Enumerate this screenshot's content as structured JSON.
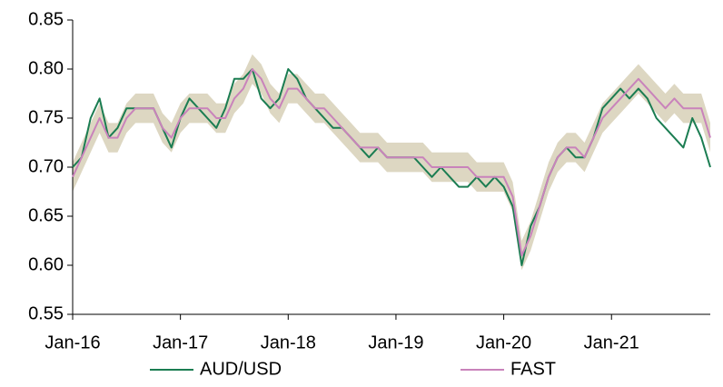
{
  "chart_data": {
    "type": "line",
    "categories": [
      "Jan-16",
      null,
      null,
      null,
      null,
      null,
      null,
      null,
      null,
      null,
      null,
      null,
      "Jan-17",
      null,
      null,
      null,
      null,
      null,
      null,
      null,
      null,
      null,
      null,
      null,
      "Jan-18",
      null,
      null,
      null,
      null,
      null,
      null,
      null,
      null,
      null,
      null,
      null,
      "Jan-19",
      null,
      null,
      null,
      null,
      null,
      null,
      null,
      null,
      null,
      null,
      null,
      "Jan-20",
      null,
      null,
      null,
      null,
      null,
      null,
      null,
      null,
      null,
      null,
      null,
      "Jan-21",
      null,
      null,
      null,
      null,
      null,
      null,
      null,
      null,
      null,
      null,
      null
    ],
    "series": [
      {
        "name": "AUD/USD",
        "color": "#1b7d52",
        "values": [
          0.7,
          0.71,
          0.75,
          0.77,
          0.73,
          0.74,
          0.76,
          0.76,
          0.76,
          0.76,
          0.74,
          0.72,
          0.75,
          0.77,
          0.76,
          0.75,
          0.74,
          0.76,
          0.79,
          0.79,
          0.8,
          0.77,
          0.76,
          0.77,
          0.8,
          0.79,
          0.77,
          0.76,
          0.75,
          0.74,
          0.74,
          0.73,
          0.72,
          0.71,
          0.72,
          0.71,
          0.71,
          0.71,
          0.71,
          0.7,
          0.69,
          0.7,
          0.69,
          0.68,
          0.68,
          0.69,
          0.68,
          0.69,
          0.68,
          0.66,
          0.6,
          0.64,
          0.66,
          0.69,
          0.71,
          0.72,
          0.71,
          0.71,
          0.73,
          0.76,
          0.77,
          0.78,
          0.77,
          0.78,
          0.77,
          0.75,
          0.74,
          0.73,
          0.72,
          0.75,
          0.73,
          0.7
        ]
      },
      {
        "name": "FAST",
        "color": "#c983bb",
        "values": [
          0.69,
          0.71,
          0.73,
          0.75,
          0.73,
          0.73,
          0.75,
          0.76,
          0.76,
          0.76,
          0.74,
          0.73,
          0.75,
          0.76,
          0.76,
          0.76,
          0.75,
          0.75,
          0.77,
          0.78,
          0.8,
          0.79,
          0.77,
          0.76,
          0.78,
          0.78,
          0.77,
          0.76,
          0.76,
          0.75,
          0.74,
          0.73,
          0.72,
          0.72,
          0.72,
          0.71,
          0.71,
          0.71,
          0.71,
          0.71,
          0.7,
          0.7,
          0.7,
          0.7,
          0.7,
          0.69,
          0.69,
          0.69,
          0.69,
          0.67,
          0.61,
          0.63,
          0.66,
          0.69,
          0.71,
          0.72,
          0.72,
          0.71,
          0.73,
          0.75,
          0.76,
          0.77,
          0.78,
          0.79,
          0.78,
          0.77,
          0.76,
          0.77,
          0.76,
          0.76,
          0.76,
          0.73
        ]
      }
    ],
    "band": {
      "color": "#ddd7c2",
      "lower": [
        0.675,
        0.695,
        0.715,
        0.735,
        0.715,
        0.715,
        0.735,
        0.745,
        0.745,
        0.745,
        0.725,
        0.715,
        0.735,
        0.745,
        0.745,
        0.745,
        0.735,
        0.735,
        0.755,
        0.765,
        0.785,
        0.775,
        0.755,
        0.745,
        0.765,
        0.765,
        0.755,
        0.745,
        0.745,
        0.735,
        0.725,
        0.715,
        0.705,
        0.705,
        0.705,
        0.695,
        0.695,
        0.695,
        0.695,
        0.695,
        0.685,
        0.685,
        0.685,
        0.685,
        0.685,
        0.675,
        0.675,
        0.675,
        0.675,
        0.655,
        0.595,
        0.615,
        0.645,
        0.675,
        0.695,
        0.705,
        0.705,
        0.695,
        0.715,
        0.735,
        0.745,
        0.755,
        0.765,
        0.775,
        0.765,
        0.755,
        0.745,
        0.755,
        0.745,
        0.745,
        0.745,
        0.715
      ],
      "upper": [
        0.705,
        0.725,
        0.745,
        0.765,
        0.745,
        0.745,
        0.765,
        0.775,
        0.775,
        0.775,
        0.755,
        0.745,
        0.765,
        0.775,
        0.775,
        0.775,
        0.765,
        0.765,
        0.785,
        0.795,
        0.815,
        0.805,
        0.785,
        0.775,
        0.795,
        0.795,
        0.785,
        0.775,
        0.775,
        0.765,
        0.755,
        0.745,
        0.735,
        0.735,
        0.735,
        0.725,
        0.725,
        0.725,
        0.725,
        0.725,
        0.715,
        0.715,
        0.715,
        0.715,
        0.715,
        0.705,
        0.705,
        0.705,
        0.705,
        0.685,
        0.625,
        0.645,
        0.675,
        0.705,
        0.725,
        0.735,
        0.735,
        0.725,
        0.745,
        0.765,
        0.775,
        0.785,
        0.795,
        0.805,
        0.795,
        0.785,
        0.775,
        0.785,
        0.775,
        0.775,
        0.775,
        0.745
      ]
    },
    "ylim": [
      0.55,
      0.85
    ],
    "yticks": [
      0.55,
      {
        "value": 0.6,
        "label": "0.60"
      },
      0.65,
      {
        "value": 0.7,
        "label": "0.70"
      },
      0.75,
      {
        "value": 0.8,
        "label": "0.80"
      },
      0.85
    ],
    "grid": false
  }
}
